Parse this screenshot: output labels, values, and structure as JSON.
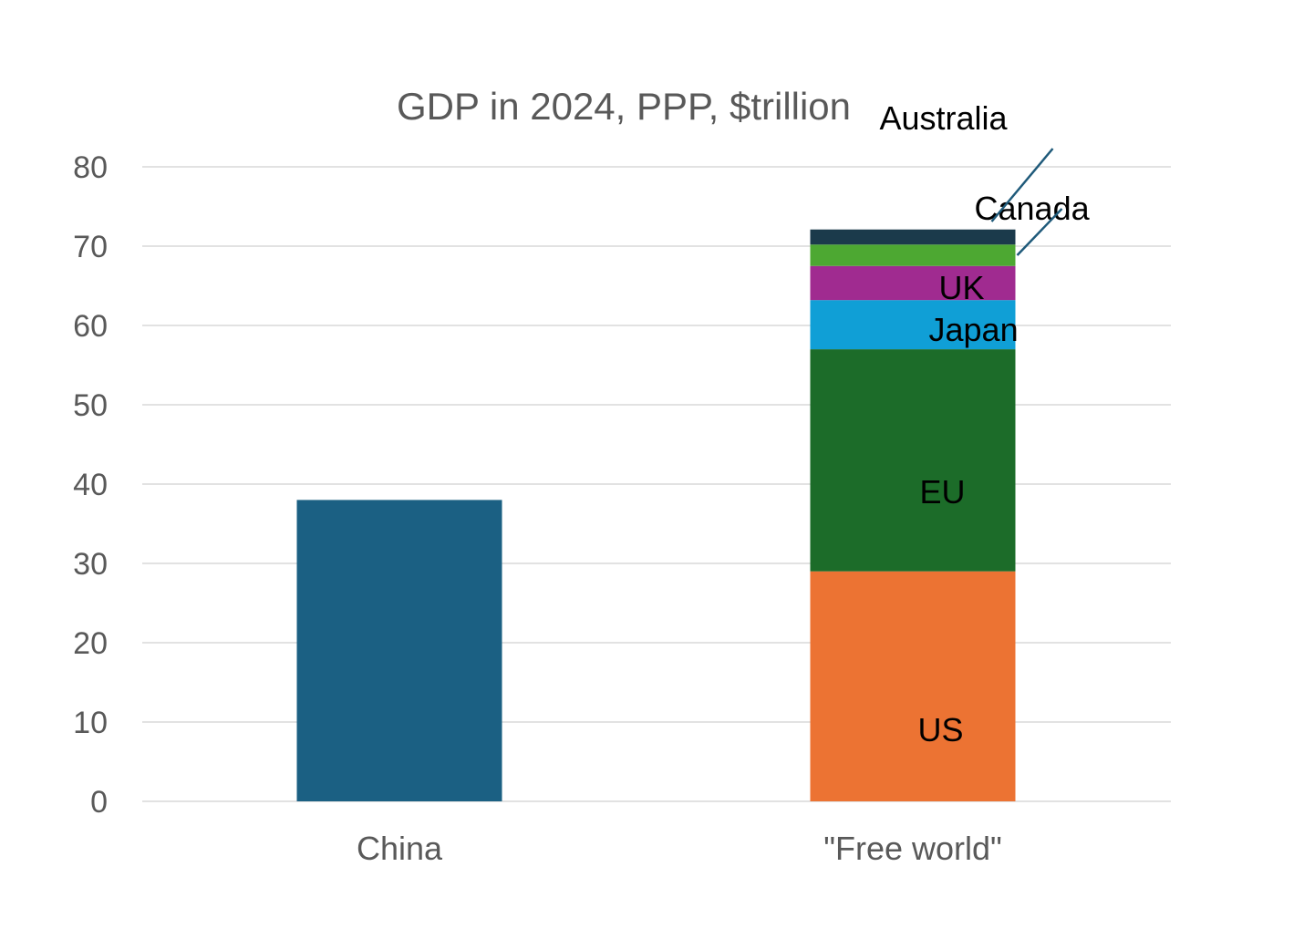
{
  "chart_data": {
    "type": "bar",
    "stacked": true,
    "title": "GDP in 2024, PPP, $trillion",
    "xlabel": "",
    "ylabel": "",
    "ylim": [
      0,
      80
    ],
    "yticks": [
      0,
      10,
      20,
      30,
      40,
      50,
      60,
      70,
      80
    ],
    "grid": true,
    "categories": [
      "China",
      "\"Free world\""
    ],
    "bars": [
      {
        "category": "China",
        "segments": [
          {
            "name": "China",
            "value": 38,
            "color": "#1b6083",
            "label": ""
          }
        ]
      },
      {
        "category": "\"Free world\"",
        "segments": [
          {
            "name": "US",
            "value": 29,
            "color": "#ec7333",
            "label": "US"
          },
          {
            "name": "EU",
            "value": 28,
            "color": "#1c6c29",
            "label": "EU"
          },
          {
            "name": "Japan",
            "value": 6.2,
            "color": "#109fd6",
            "label": "Japan"
          },
          {
            "name": "UK",
            "value": 4.3,
            "color": "#a02b90",
            "label": "UK"
          },
          {
            "name": "Canada",
            "value": 2.7,
            "color": "#4da832",
            "label": "Canada"
          },
          {
            "name": "Australia",
            "value": 1.9,
            "color": "#1b3a4b",
            "label": "Australia"
          }
        ]
      }
    ]
  }
}
